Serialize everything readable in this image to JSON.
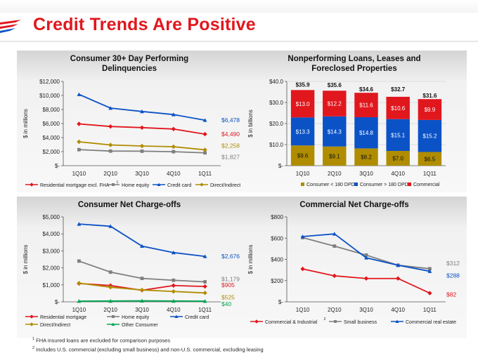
{
  "page": {
    "title": "Credit Trends Are Positive",
    "footnotes": [
      {
        "mark": "1",
        "text": "FHA insured loans are excluded for comparison purposes"
      },
      {
        "mark": "2",
        "text": "Includes U.S. commercial (excluding small business) and non-U.S. commercial, excluding leasing"
      }
    ]
  },
  "colors": {
    "title": "#e1171e",
    "red": "#e1171e",
    "gray": "#7f7f7f",
    "blue": "#0b52c6",
    "gold": "#b08d00",
    "green": "#00a651"
  },
  "chart_data": [
    {
      "id": "delinquencies",
      "type": "line",
      "title": "Consumer 30+ Day Performing Delinquencies",
      "title_lines": [
        "Consumer 30+ Day Performing",
        "Delinquencies"
      ],
      "ylabel": "$ in millions",
      "ylim": [
        0,
        12000
      ],
      "yticks": [
        0,
        2000,
        4000,
        6000,
        8000,
        10000,
        12000
      ],
      "ytick_labels": [
        "$-",
        "$2,000",
        "$4,000",
        "$6,000",
        "$8,000",
        "$10,000",
        "$12,000"
      ],
      "categories": [
        "1Q10",
        "2Q10",
        "3Q10",
        "4Q10",
        "1Q11"
      ],
      "series": [
        {
          "name": "Residential mortgage excl. FHA",
          "legend_sup": "1",
          "color": "#e1171e",
          "marker": "diamond",
          "values": [
            5950,
            5580,
            5420,
            5220,
            4490
          ],
          "end_label": "$4,490"
        },
        {
          "name": "Home equity",
          "color": "#7f7f7f",
          "marker": "square",
          "values": [
            2280,
            2080,
            2060,
            1990,
            1827
          ],
          "end_label": "$1,827"
        },
        {
          "name": "Credit card",
          "color": "#0b52c6",
          "marker": "triangle",
          "values": [
            10150,
            8200,
            7720,
            7280,
            6478
          ],
          "end_label": "$6,478"
        },
        {
          "name": "Direct/Indirect",
          "color": "#b08d00",
          "marker": "diamond",
          "values": [
            3400,
            2950,
            2800,
            2700,
            2258
          ],
          "end_label": "$2,258"
        }
      ]
    },
    {
      "id": "nonperforming",
      "type": "bar",
      "stacked": true,
      "title": "Nonperforming Loans, Leases and Foreclosed Properties",
      "title_lines": [
        "Nonperforming Loans, Leases and",
        "Foreclosed Properties"
      ],
      "ylabel": "$ in billions",
      "ylim": [
        0,
        40
      ],
      "yticks": [
        0,
        10,
        20,
        30,
        40
      ],
      "ytick_labels": [
        "$-",
        "$10.0",
        "$20.0",
        "$30.0",
        "$40.0"
      ],
      "categories": [
        "1Q10",
        "2Q10",
        "3Q10",
        "4Q10",
        "1Q11"
      ],
      "series": [
        {
          "name": "Consumer < 180 DPD",
          "color": "#b08d00",
          "values": [
            9.6,
            9.1,
            8.2,
            7.0,
            6.5
          ],
          "labels": [
            "$9.6",
            "$9.1",
            "$8.2",
            "$7.0",
            "$6.5"
          ]
        },
        {
          "name": "Consumer > 180 DPD",
          "color": "#0b52c6",
          "values": [
            13.3,
            14.3,
            14.8,
            15.1,
            15.2
          ],
          "labels": [
            "$13.3",
            "$14.3",
            "$14.8",
            "$15.1",
            "$15.2"
          ]
        },
        {
          "name": "Commercial",
          "color": "#e1171e",
          "values": [
            13.0,
            12.2,
            11.6,
            10.6,
            9.9
          ],
          "labels": [
            "$13.0",
            "$12.2",
            "$11.6",
            "$10.6",
            "$9.9"
          ]
        }
      ],
      "totals": [
        "$35.9",
        "$35.6",
        "$34.6",
        "$32.7",
        "$31.6"
      ]
    },
    {
      "id": "consumer_nco",
      "type": "line",
      "title": "Consumer Net Charge-offs",
      "title_lines": [
        "Consumer Net Charge-offs"
      ],
      "ylabel": "$ in millions",
      "ylim": [
        0,
        5000
      ],
      "yticks": [
        0,
        1000,
        2000,
        3000,
        4000,
        5000
      ],
      "ytick_labels": [
        "$-",
        "$1,000",
        "$2,000",
        "$3,000",
        "$4,000",
        "$5,000"
      ],
      "categories": [
        "1Q10",
        "2Q10",
        "3Q10",
        "4Q10",
        "1Q11"
      ],
      "series": [
        {
          "name": "Residential mortgage",
          "color": "#e1171e",
          "marker": "diamond",
          "values": [
            1080,
            960,
            680,
            960,
            905
          ],
          "end_label": "$905"
        },
        {
          "name": "Home equity",
          "color": "#7f7f7f",
          "marker": "square",
          "values": [
            2400,
            1750,
            1380,
            1270,
            1179
          ],
          "end_label": "$1,179"
        },
        {
          "name": "Credit card",
          "color": "#0b52c6",
          "marker": "triangle",
          "values": [
            4580,
            4450,
            3280,
            2900,
            2676
          ],
          "end_label": "$2,676"
        },
        {
          "name": "Direct/Indirect",
          "color": "#b08d00",
          "marker": "diamond",
          "values": [
            1100,
            860,
            700,
            610,
            525
          ],
          "end_label": "$525"
        },
        {
          "name": "Other Consumer",
          "color": "#00a651",
          "marker": "triangle",
          "values": [
            40,
            50,
            60,
            50,
            40
          ],
          "end_label": "$40"
        }
      ]
    },
    {
      "id": "commercial_nco",
      "type": "line",
      "title": "Commercial Net Charge-offs",
      "title_lines": [
        "Commercial Net Charge-offs"
      ],
      "ylabel": "$ in millions",
      "ylim": [
        0,
        800
      ],
      "yticks": [
        0,
        200,
        400,
        600,
        800
      ],
      "ytick_labels": [
        "$-",
        "$200",
        "$400",
        "$600",
        "$800"
      ],
      "categories": [
        "1Q10",
        "2Q10",
        "3Q10",
        "4Q10",
        "1Q11"
      ],
      "series": [
        {
          "name": "Commercial & Industrial",
          "legend_sup": "2",
          "color": "#e1171e",
          "marker": "diamond",
          "values": [
            310,
            245,
            220,
            220,
            82
          ],
          "end_label": "$82"
        },
        {
          "name": "Small business",
          "color": "#7f7f7f",
          "marker": "square",
          "values": [
            605,
            525,
            440,
            345,
            312
          ],
          "end_label": "$312"
        },
        {
          "name": "Commercial real estate",
          "color": "#0b52c6",
          "marker": "triangle",
          "values": [
            615,
            640,
            415,
            345,
            288
          ],
          "end_label": "$288"
        }
      ]
    }
  ]
}
